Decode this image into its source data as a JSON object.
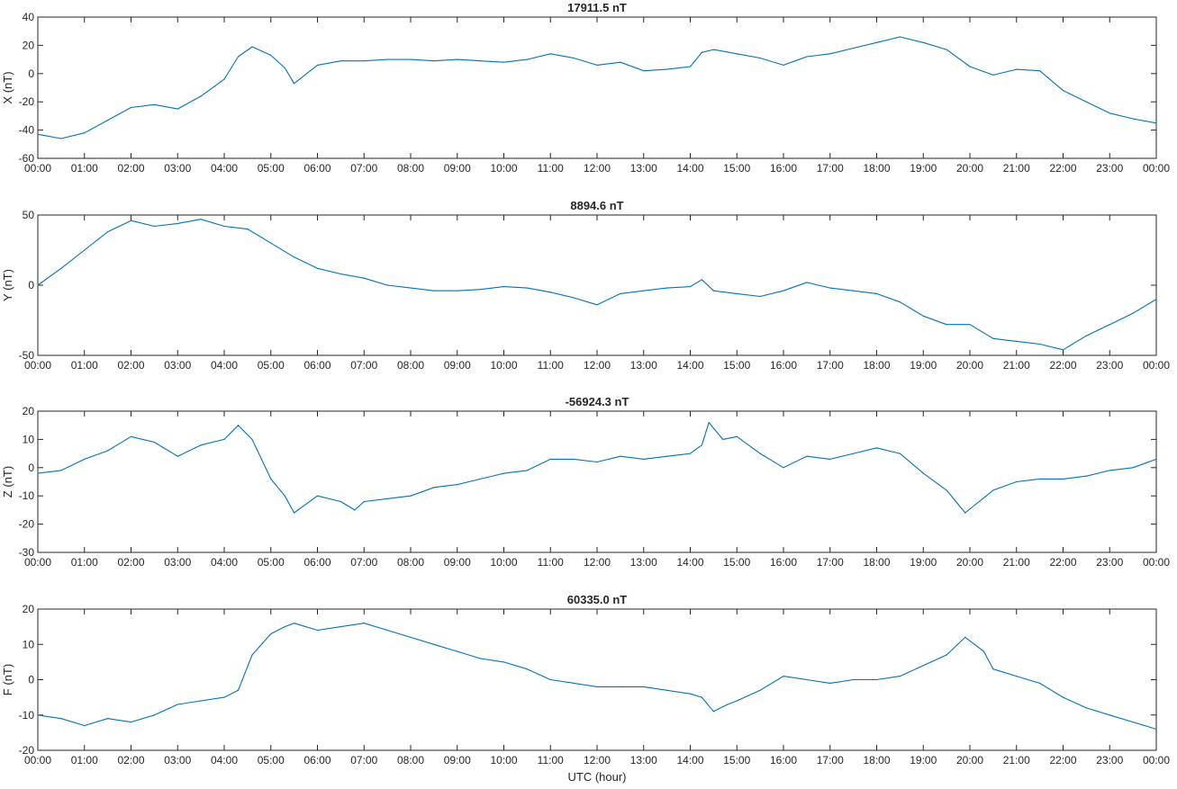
{
  "figure": {
    "xlabel": "UTC (hour)",
    "line_color": "#0072BD",
    "x_tick_labels": [
      "00:00",
      "01:00",
      "02:00",
      "03:00",
      "04:00",
      "05:00",
      "06:00",
      "07:00",
      "08:00",
      "09:00",
      "10:00",
      "11:00",
      "12:00",
      "13:00",
      "14:00",
      "15:00",
      "16:00",
      "17:00",
      "18:00",
      "19:00",
      "20:00",
      "21:00",
      "22:00",
      "23:00",
      "00:00"
    ]
  },
  "chart_data": [
    {
      "type": "line",
      "title": "17911.5 nT",
      "ylabel": "X (nT)",
      "xlabel": "",
      "xlim": [
        0,
        24
      ],
      "ylim": [
        -60,
        40
      ],
      "yticks": [
        -60,
        -40,
        -20,
        0,
        20,
        40
      ],
      "grid": false,
      "x": [
        0,
        0.5,
        1,
        1.5,
        2,
        2.5,
        3,
        3.5,
        4,
        4.3,
        4.6,
        5,
        5.3,
        5.5,
        6,
        6.5,
        7,
        7.5,
        8,
        8.5,
        9,
        9.5,
        10,
        10.5,
        11,
        11.5,
        12,
        12.5,
        13,
        13.5,
        14,
        14.25,
        14.5,
        15,
        15.5,
        16,
        16.5,
        17,
        17.5,
        18,
        18.5,
        19,
        19.5,
        20,
        20.5,
        21,
        21.5,
        22,
        22.5,
        23,
        23.5,
        24
      ],
      "series": [
        {
          "values": [
            -43,
            -46,
            -42,
            -33,
            -24,
            -22,
            -25,
            -16,
            -4,
            12,
            19,
            13,
            4,
            -7,
            6,
            9,
            9,
            10,
            10,
            9,
            10,
            9,
            8,
            10,
            14,
            11,
            6,
            8,
            2,
            3,
            5,
            15,
            17,
            14,
            11,
            6,
            12,
            14,
            18,
            22,
            26,
            22,
            17,
            5,
            -1,
            3,
            2,
            -12,
            -20,
            -28,
            -32,
            -35
          ]
        }
      ]
    },
    {
      "type": "line",
      "title": "8894.6 nT",
      "ylabel": "Y (nT)",
      "xlabel": "",
      "xlim": [
        0,
        24
      ],
      "ylim": [
        -50,
        50
      ],
      "yticks": [
        -50,
        0,
        50
      ],
      "grid": false,
      "x": [
        0,
        0.5,
        1,
        1.5,
        2,
        2.5,
        3,
        3.5,
        4,
        4.5,
        5,
        5.5,
        6,
        6.5,
        7,
        7.5,
        8,
        8.5,
        9,
        9.5,
        10,
        10.5,
        11,
        11.5,
        12,
        12.5,
        13,
        13.5,
        14,
        14.25,
        14.5,
        15,
        15.5,
        16,
        16.5,
        17,
        17.5,
        18,
        18.5,
        19,
        19.5,
        20,
        20.5,
        21,
        21.5,
        22,
        22.5,
        23,
        23.5,
        24
      ],
      "series": [
        {
          "values": [
            0,
            12,
            25,
            38,
            46,
            42,
            44,
            47,
            42,
            40,
            30,
            20,
            12,
            8,
            5,
            0,
            -2,
            -4,
            -4,
            -3,
            -1,
            -2,
            -5,
            -9,
            -14,
            -6,
            -4,
            -2,
            -1,
            4,
            -4,
            -6,
            -8,
            -4,
            2,
            -2,
            -4,
            -6,
            -12,
            -22,
            -28,
            -28,
            -38,
            -40,
            -42,
            -46,
            -36,
            -28,
            -20,
            -10
          ]
        }
      ]
    },
    {
      "type": "line",
      "title": "-56924.3 nT",
      "ylabel": "Z (nT)",
      "xlabel": "",
      "xlim": [
        0,
        24
      ],
      "ylim": [
        -30,
        20
      ],
      "yticks": [
        -30,
        -20,
        -10,
        0,
        10,
        20
      ],
      "grid": false,
      "x": [
        0,
        0.5,
        1,
        1.5,
        2,
        2.5,
        3,
        3.5,
        4,
        4.3,
        4.6,
        5,
        5.3,
        5.5,
        6,
        6.5,
        6.8,
        7,
        7.5,
        8,
        8.5,
        9,
        9.5,
        10,
        10.5,
        11,
        11.5,
        12,
        12.5,
        13,
        13.5,
        14,
        14.25,
        14.4,
        14.7,
        15,
        15.5,
        16,
        16.5,
        17,
        17.5,
        18,
        18.5,
        19,
        19.5,
        19.9,
        20.5,
        21,
        21.5,
        22,
        22.5,
        23,
        23.5,
        24
      ],
      "series": [
        {
          "values": [
            -2,
            -1,
            3,
            6,
            11,
            9,
            4,
            8,
            10,
            15,
            10,
            -4,
            -10,
            -16,
            -10,
            -12,
            -15,
            -12,
            -11,
            -10,
            -7,
            -6,
            -4,
            -2,
            -1,
            3,
            3,
            2,
            4,
            3,
            4,
            5,
            8,
            16,
            10,
            11,
            5,
            0,
            4,
            3,
            5,
            7,
            5,
            -2,
            -8,
            -16,
            -8,
            -5,
            -4,
            -4,
            -3,
            -1,
            0,
            3
          ]
        }
      ]
    },
    {
      "type": "line",
      "title": "60335.0 nT",
      "ylabel": "F (nT)",
      "xlabel": "UTC (hour)",
      "xlim": [
        0,
        24
      ],
      "ylim": [
        -20,
        20
      ],
      "yticks": [
        -20,
        -10,
        0,
        10,
        20
      ],
      "grid": false,
      "x": [
        0,
        0.5,
        1,
        1.5,
        2,
        2.5,
        3,
        3.5,
        4,
        4.3,
        4.6,
        5,
        5.3,
        5.5,
        6,
        6.5,
        7,
        7.5,
        8,
        8.5,
        9,
        9.5,
        10,
        10.5,
        11,
        11.5,
        12,
        12.5,
        13,
        13.5,
        14,
        14.25,
        14.5,
        14.8,
        15,
        15.5,
        16,
        16.5,
        17,
        17.5,
        18,
        18.5,
        19,
        19.5,
        19.9,
        20.3,
        20.5,
        21,
        21.5,
        22,
        22.5,
        23,
        23.5,
        24
      ],
      "series": [
        {
          "values": [
            -10,
            -11,
            -13,
            -11,
            -12,
            -10,
            -7,
            -6,
            -5,
            -3,
            7,
            13,
            15,
            16,
            14,
            15,
            16,
            14,
            12,
            10,
            8,
            6,
            5,
            3,
            0,
            -1,
            -2,
            -2,
            -2,
            -3,
            -4,
            -5,
            -9,
            -7,
            -6,
            -3,
            1,
            0,
            -1,
            0,
            0,
            1,
            4,
            7,
            12,
            8,
            3,
            1,
            -1,
            -5,
            -8,
            -10,
            -12,
            -14
          ]
        }
      ]
    }
  ]
}
